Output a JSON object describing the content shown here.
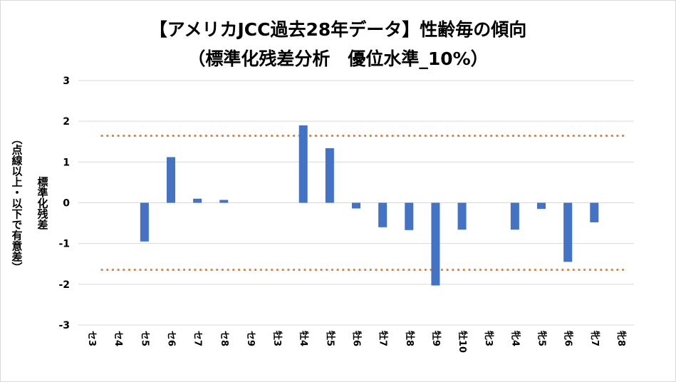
{
  "chart_data": {
    "type": "bar",
    "title": "【アメリカJCC過去28年データ】性齢毎の傾向",
    "subtitle": "（標準化残差分析　優位水準_10%）",
    "ylabel": "標準化残差",
    "ylabel_note": "（点線以上・以下で有意差）",
    "ylim": [
      -3,
      3
    ],
    "yticks": [
      "3",
      "2",
      "1",
      "0",
      "-1",
      "-2",
      "-3"
    ],
    "grid": true,
    "reference_lines": [
      1.645,
      -1.645
    ],
    "categories": [
      "セ3",
      "セ4",
      "セ5",
      "セ6",
      "セ7",
      "セ8",
      "セ9",
      "牡3",
      "牡4",
      "牡5",
      "牡6",
      "牡7",
      "牡8",
      "牡9",
      "牡10",
      "牝3",
      "牝4",
      "牝5",
      "牝6",
      "牝7",
      "牝8"
    ],
    "values": [
      0,
      0,
      -0.95,
      1.12,
      0.1,
      0.07,
      0,
      0,
      1.9,
      1.34,
      -0.14,
      -0.6,
      -0.67,
      -2.03,
      -0.66,
      0,
      -0.66,
      -0.15,
      -1.45,
      -0.48,
      0
    ]
  },
  "colors": {
    "bar": "#4472c4",
    "reference": "#ed7d31",
    "grid": "#d9d9d9",
    "border": "#d9d9d9"
  }
}
